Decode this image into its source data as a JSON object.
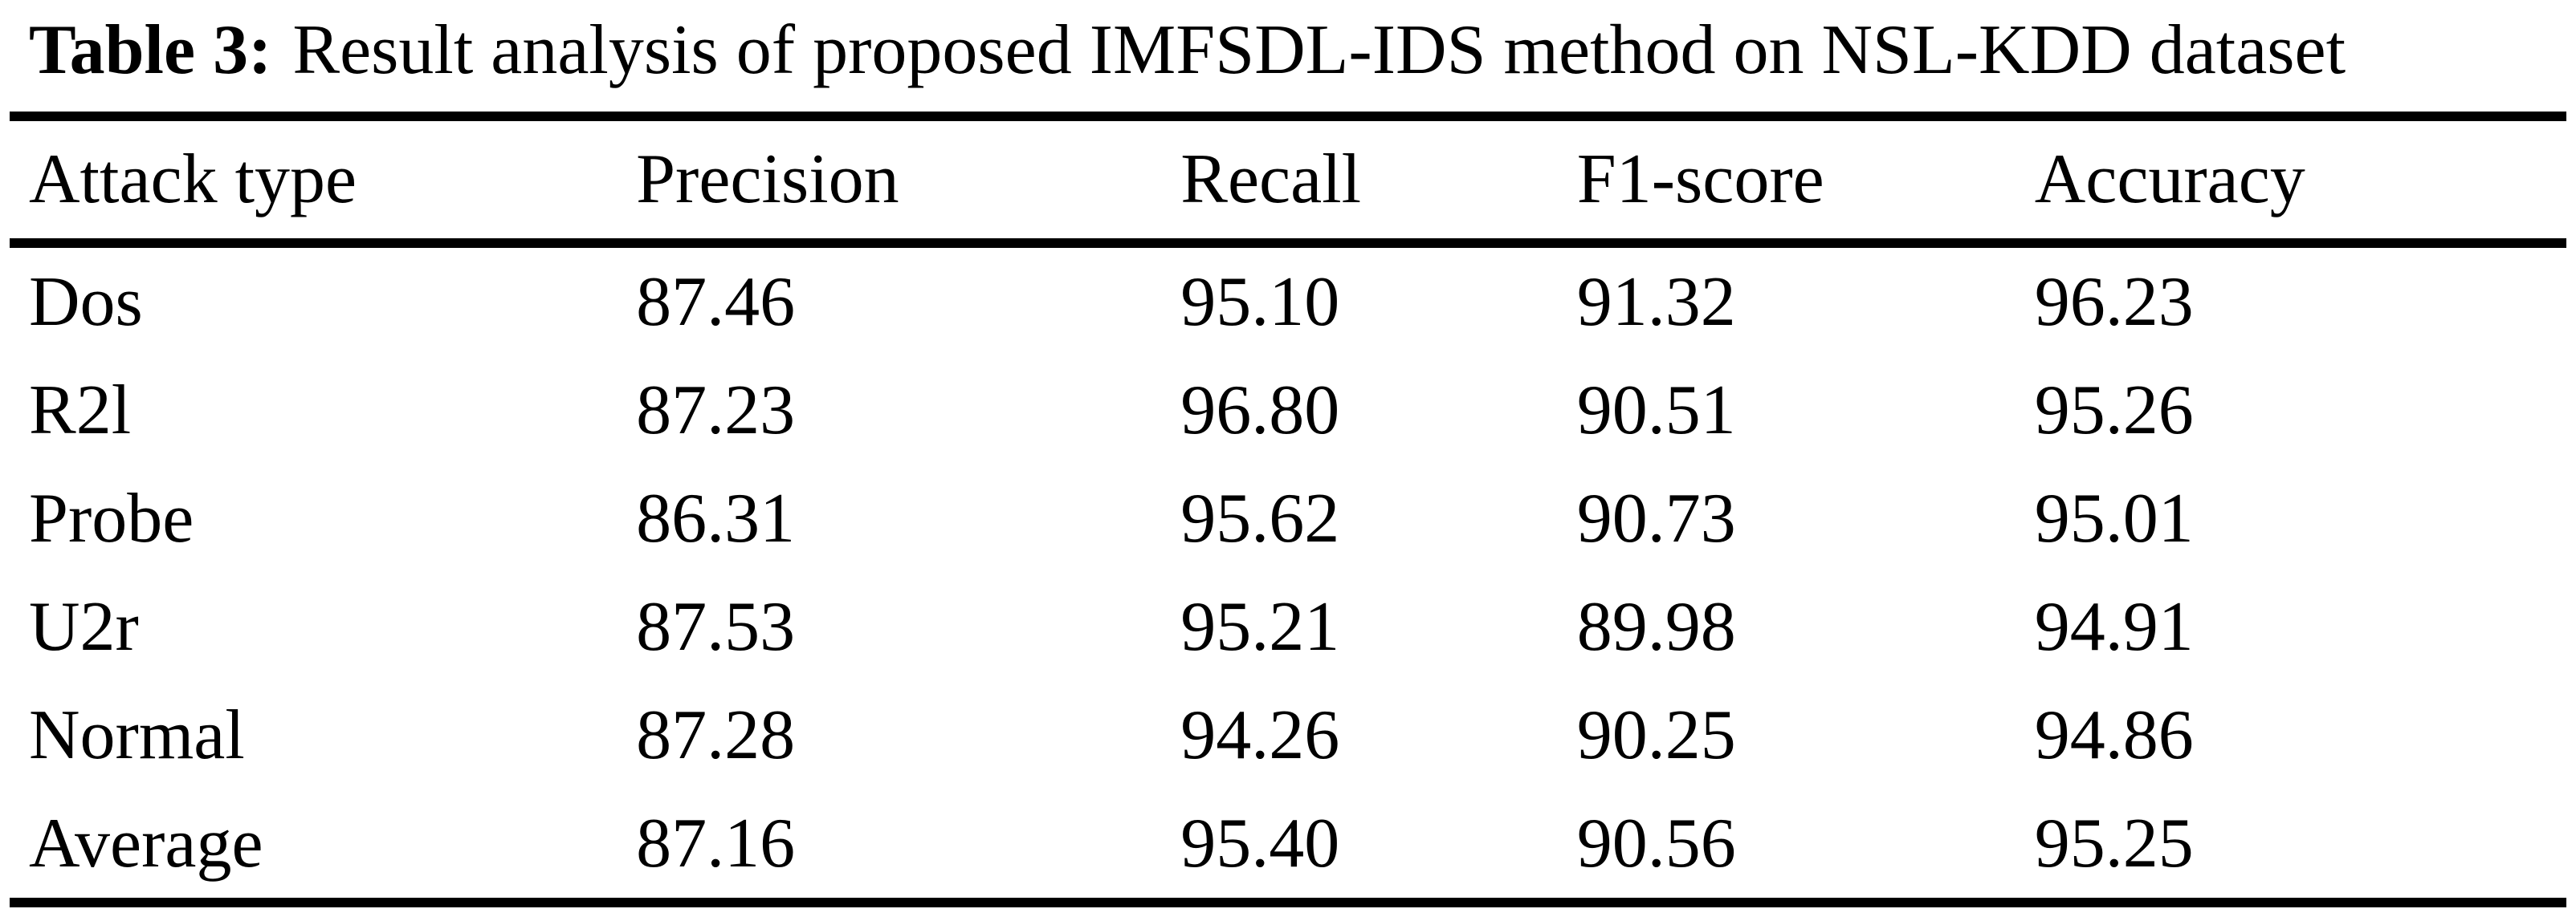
{
  "page": {
    "background": "#ffffff",
    "text_color": "#000000",
    "rule_color": "#000000"
  },
  "table": {
    "caption_label": "Table 3:",
    "caption_text": "Result analysis of proposed IMFSDL-IDS method on NSL-KDD dataset",
    "columns": [
      "Attack type",
      "Precision",
      "Recall",
      "F1-score",
      "Accuracy"
    ],
    "rows": [
      [
        "Dos",
        "87.46",
        "95.10",
        "91.32",
        "96.23"
      ],
      [
        "R2l",
        "87.23",
        "96.80",
        "90.51",
        "95.26"
      ],
      [
        "Probe",
        "86.31",
        "95.62",
        "90.73",
        "95.01"
      ],
      [
        "U2r",
        "87.53",
        "95.21",
        "89.98",
        "94.91"
      ],
      [
        "Normal",
        "87.28",
        "94.26",
        "90.25",
        "94.86"
      ],
      [
        "Average",
        "87.16",
        "95.40",
        "90.56",
        "95.25"
      ]
    ]
  },
  "chart_data": {
    "type": "table",
    "title": "Table 3: Result analysis of proposed IMFSDL-IDS method on NSL-KDD dataset",
    "columns": [
      "Attack type",
      "Precision",
      "Recall",
      "F1-score",
      "Accuracy"
    ],
    "rows": [
      [
        "Dos",
        87.46,
        95.1,
        91.32,
        96.23
      ],
      [
        "R2l",
        87.23,
        96.8,
        90.51,
        95.26
      ],
      [
        "Probe",
        86.31,
        95.62,
        90.73,
        95.01
      ],
      [
        "U2r",
        87.53,
        95.21,
        89.98,
        94.91
      ],
      [
        "Normal",
        87.28,
        94.26,
        90.25,
        94.86
      ],
      [
        "Average",
        87.16,
        95.4,
        90.56,
        95.25
      ]
    ]
  }
}
